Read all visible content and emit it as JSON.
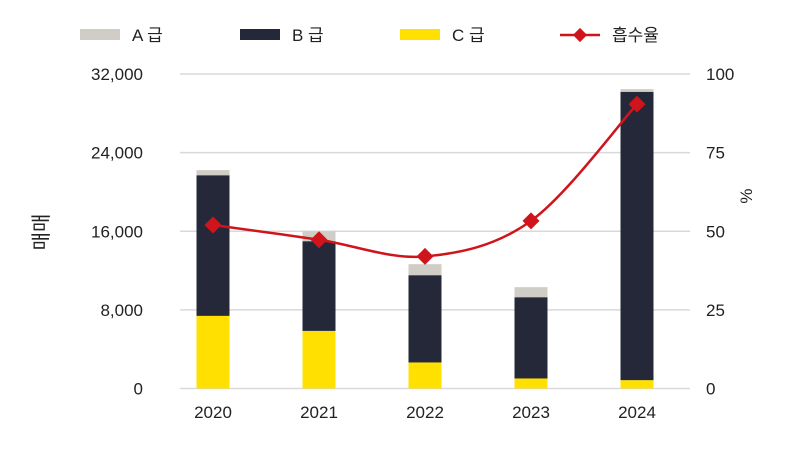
{
  "chart_data": {
    "type": "bar",
    "title": "",
    "categories": [
      "2020",
      "2021",
      "2022",
      "2023",
      "2024"
    ],
    "series": [
      {
        "name": "C 급",
        "type": "bar",
        "stack": "main",
        "color": "#FFE000",
        "values": [
          7390,
          5860,
          2650,
          1020,
          850
        ]
      },
      {
        "name": "B 급",
        "type": "bar",
        "stack": "main",
        "color": "#252839",
        "values": [
          14310,
          9130,
          8880,
          8270,
          29340
        ]
      },
      {
        "name": "A 급",
        "type": "bar",
        "stack": "main",
        "color": "#D0CCC6",
        "values": [
          520,
          1020,
          1120,
          1020,
          270
        ]
      },
      {
        "name": "흡수율",
        "type": "line",
        "axis": "right",
        "color": "#D0141C",
        "values": [
          52,
          47.3,
          42,
          53.3,
          90.4
        ]
      }
    ],
    "legend_order": [
      "A 급",
      "B 급",
      "C 급",
      "흡수율"
    ],
    "ylabel": "매매",
    "y2label": "%",
    "ylim": [
      0,
      32000
    ],
    "y2lim": [
      0,
      100
    ],
    "yticks": [
      "0",
      "8,000",
      "16,000",
      "24,000",
      "32,000"
    ],
    "y2ticks": [
      "0",
      "25",
      "50",
      "75",
      "100"
    ],
    "grid": true,
    "legend_position": "top"
  }
}
